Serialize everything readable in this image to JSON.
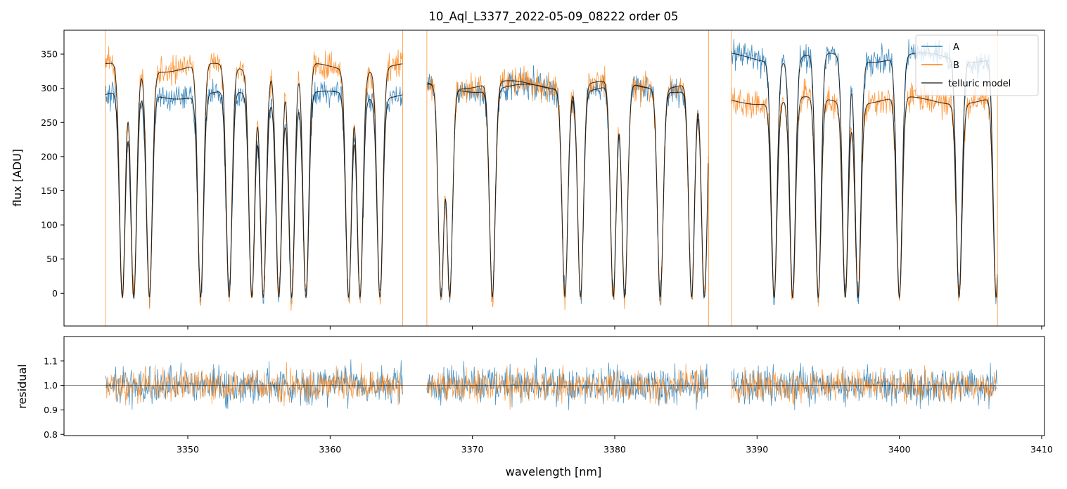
{
  "chart_data": {
    "type": "line",
    "title": "10_Aql_L3377_2022-05-09_08222  order 05",
    "xlabel": "wavelength [nm]",
    "colors": {
      "A": "#1f77b4",
      "B": "#ff7f0e",
      "telluric model": "#000000"
    },
    "legend": {
      "position": "top-right",
      "entries": [
        "A",
        "B",
        "telluric model"
      ]
    },
    "segments_nm": [
      [
        3344.2,
        3365.1
      ],
      [
        3366.8,
        3386.6
      ],
      [
        3388.2,
        3406.9
      ]
    ],
    "panels": [
      {
        "name": "flux",
        "ylabel": "flux [ADU]",
        "xlim": [
          3341.3,
          3410.2
        ],
        "ylim": [
          -48,
          385
        ],
        "xticks": [],
        "yticks": [
          0,
          50,
          100,
          150,
          200,
          250,
          300,
          350
        ],
        "ytick_labels": [
          "0",
          "50",
          "100",
          "150",
          "200",
          "250",
          "300",
          "350"
        ],
        "series": [
          {
            "name": "A",
            "continuum_by_segment": [
              290,
              300,
              345
            ]
          },
          {
            "name": "B",
            "continuum_by_segment": [
              330,
              305,
              282
            ]
          },
          {
            "name": "telluric model",
            "description": "smooth model tracing both A and B spectra"
          }
        ],
        "absorption_lines_nm": [
          3345.4,
          3346.2,
          3347.3,
          3350.9,
          3352.9,
          3354.5,
          3355.3,
          3356.4,
          3357.3,
          3358.3,
          3361.3,
          3362.1,
          3363.5,
          3367.8,
          3368.4,
          3371.4,
          3376.5,
          3377.6,
          3379.9,
          3380.7,
          3383.2,
          3385.4,
          3386.3,
          3391.2,
          3392.5,
          3394.3,
          3396.2,
          3397.1,
          3400.0,
          3404.2,
          3406.8
        ]
      },
      {
        "name": "residual",
        "ylabel": "residual",
        "xlim": [
          3341.3,
          3410.2
        ],
        "ylim": [
          0.795,
          1.2
        ],
        "reference_line": 1.0,
        "xticks": [
          3350,
          3360,
          3370,
          3380,
          3390,
          3400,
          3410
        ],
        "xtick_labels": [
          "3350",
          "3360",
          "3370",
          "3380",
          "3390",
          "3400",
          "3410"
        ],
        "yticks": [
          0.8,
          0.9,
          1.0,
          1.1
        ],
        "ytick_labels": [
          "0.8",
          "0.9",
          "1.0",
          "1.1"
        ],
        "series": [
          {
            "name": "A",
            "mean": 1.0,
            "scatter": 0.07
          },
          {
            "name": "B",
            "mean": 1.0,
            "scatter": 0.06
          }
        ]
      }
    ]
  }
}
